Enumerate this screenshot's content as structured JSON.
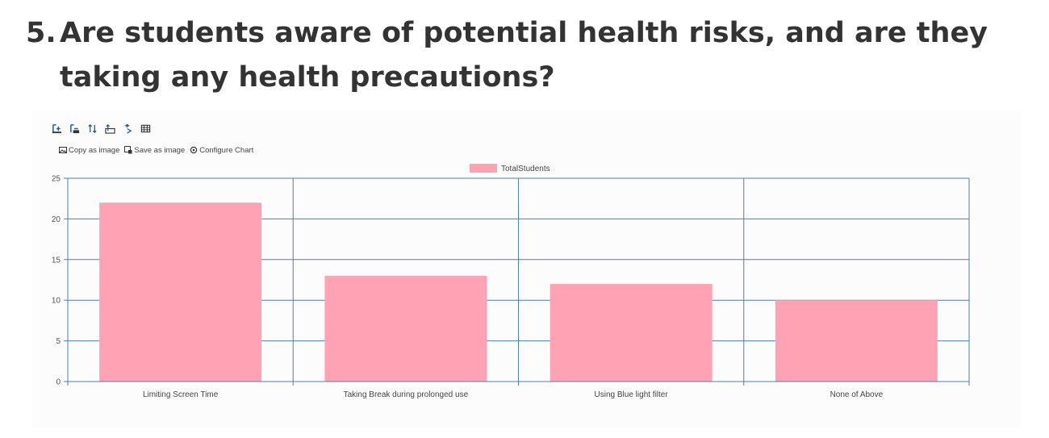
{
  "question": {
    "number": "5.",
    "text": "Are students aware of potential health risks, and are they taking any health precautions?"
  },
  "toolbar": {
    "icons": [
      "zoom-in-icon",
      "zoom-out-icon",
      "pan-icon",
      "select-icon",
      "reset-icon",
      "table-icon"
    ]
  },
  "actions": {
    "copy_label": "Copy as image",
    "save_label": "Save as image",
    "configure_label": "Configure Chart"
  },
  "colors": {
    "bar_fill": "#fea2b4",
    "grid": "#4d7fb3",
    "accent": "#1f5c99"
  },
  "chart_data": {
    "type": "bar",
    "categories": [
      "Limiting Screen Time",
      "Taking Break during prolonged use",
      "Using Blue light filter",
      "None of Above"
    ],
    "series": [
      {
        "name": "TotalStudents",
        "values": [
          22,
          13,
          12,
          10
        ]
      }
    ],
    "yticks": [
      "0",
      "5",
      "10",
      "15",
      "20",
      "25"
    ],
    "ylim": [
      0,
      25
    ],
    "grid": true,
    "legend": "top-center"
  }
}
